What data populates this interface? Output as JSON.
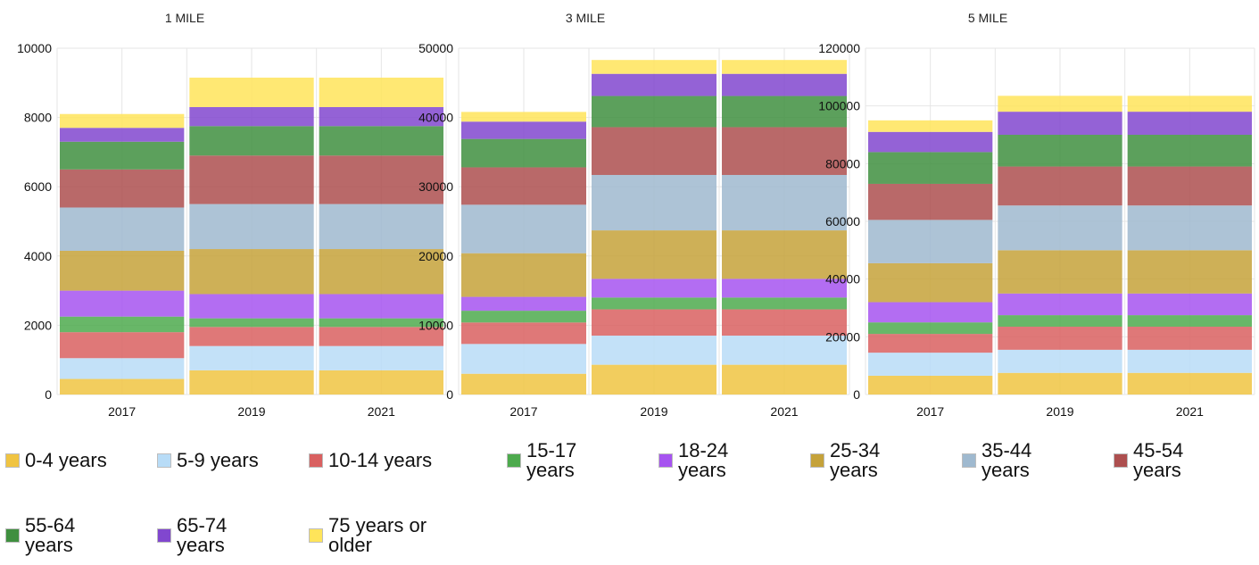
{
  "colors": {
    "0-4 years": "#f0c442",
    "5-9 years": "#b8dcf7",
    "10-14 years": "#d96060",
    "15-17 years": "#4daa4d",
    "18-24 years": "#a653f0",
    "25-34 years": "#c5a23a",
    "35-44 years": "#9fb9cf",
    "45-54 years": "#ad4f4f",
    "55-64 years": "#3f8f3f",
    "65-74 years": "#8147cf",
    "75 years or older": "#ffe45a"
  },
  "legend": [
    {
      "key": "0-4 years",
      "label": "0-4 years"
    },
    {
      "key": "5-9 years",
      "label": "5-9 years"
    },
    {
      "key": "10-14 years",
      "label": "10-14 years"
    },
    {
      "key": "15-17 years",
      "label": "15-17\nyears"
    },
    {
      "key": "18-24 years",
      "label": "18-24\nyears"
    },
    {
      "key": "25-34 years",
      "label": "25-34\nyears"
    },
    {
      "key": "35-44 years",
      "label": "35-44\nyears"
    },
    {
      "key": "45-54 years",
      "label": "45-54\nyears"
    },
    {
      "key": "55-64 years",
      "label": "55-64\nyears"
    },
    {
      "key": "65-74 years",
      "label": "65-74\nyears"
    },
    {
      "key": "75 years or older",
      "label": "75 years or\nolder"
    }
  ],
  "chart_data": [
    {
      "type": "bar",
      "stacked": true,
      "title": "1 MILE",
      "categories": [
        "2017",
        "2019",
        "2021"
      ],
      "ylim": [
        0,
        10000
      ],
      "yticks": [
        "0",
        "2000",
        "4000",
        "6000",
        "8000",
        "10000"
      ],
      "grid": true,
      "series": [
        {
          "name": "0-4 years",
          "values": [
            450,
            700,
            700
          ]
        },
        {
          "name": "5-9 years",
          "values": [
            600,
            700,
            700
          ]
        },
        {
          "name": "10-14 years",
          "values": [
            750,
            550,
            550
          ]
        },
        {
          "name": "15-17 years",
          "values": [
            450,
            250,
            250
          ]
        },
        {
          "name": "18-24 years",
          "values": [
            750,
            700,
            700
          ]
        },
        {
          "name": "25-34 years",
          "values": [
            1150,
            1300,
            1300
          ]
        },
        {
          "name": "35-44 years",
          "values": [
            1250,
            1300,
            1300
          ]
        },
        {
          "name": "45-54 years",
          "values": [
            1100,
            1400,
            1400
          ]
        },
        {
          "name": "55-64 years",
          "values": [
            800,
            850,
            850
          ]
        },
        {
          "name": "65-74 years",
          "values": [
            400,
            550,
            550
          ]
        },
        {
          "name": "75 years or older",
          "values": [
            400,
            850,
            850
          ]
        }
      ]
    },
    {
      "type": "bar",
      "stacked": true,
      "title": "3 MILE",
      "categories": [
        "2017",
        "2019",
        "2021"
      ],
      "ylim": [
        0,
        50000
      ],
      "yticks": [
        "0",
        "10000",
        "20000",
        "30000",
        "40000",
        "50000"
      ],
      "grid": true,
      "series": [
        {
          "name": "0-4 years",
          "values": [
            3000,
            4300,
            4300
          ]
        },
        {
          "name": "5-9 years",
          "values": [
            4300,
            4200,
            4200
          ]
        },
        {
          "name": "10-14 years",
          "values": [
            3100,
            3800,
            3800
          ]
        },
        {
          "name": "15-17 years",
          "values": [
            1700,
            1700,
            1700
          ]
        },
        {
          "name": "18-24 years",
          "values": [
            2000,
            2700,
            2700
          ]
        },
        {
          "name": "25-34 years",
          "values": [
            6300,
            7000,
            7000
          ]
        },
        {
          "name": "35-44 years",
          "values": [
            7000,
            8000,
            8000
          ]
        },
        {
          "name": "45-54 years",
          "values": [
            5400,
            6900,
            6900
          ]
        },
        {
          "name": "55-64 years",
          "values": [
            4100,
            4500,
            4500
          ]
        },
        {
          "name": "65-74 years",
          "values": [
            2500,
            3200,
            3200
          ]
        },
        {
          "name": "75 years or older",
          "values": [
            1400,
            2000,
            2000
          ]
        }
      ]
    },
    {
      "type": "bar",
      "stacked": true,
      "title": "5 MILE",
      "categories": [
        "2017",
        "2019",
        "2021"
      ],
      "ylim": [
        0,
        120000
      ],
      "yticks": [
        "0",
        "20000",
        "40000",
        "60000",
        "80000",
        "100000",
        "120000"
      ],
      "grid": true,
      "series": [
        {
          "name": "0-4 years",
          "values": [
            6500,
            7500,
            7500
          ]
        },
        {
          "name": "5-9 years",
          "values": [
            8000,
            8000,
            8000
          ]
        },
        {
          "name": "10-14 years",
          "values": [
            6500,
            8000,
            8000
          ]
        },
        {
          "name": "15-17 years",
          "values": [
            4000,
            4000,
            4000
          ]
        },
        {
          "name": "18-24 years",
          "values": [
            7000,
            7500,
            7500
          ]
        },
        {
          "name": "25-34 years",
          "values": [
            13500,
            15000,
            15000
          ]
        },
        {
          "name": "35-44 years",
          "values": [
            15000,
            15500,
            15500
          ]
        },
        {
          "name": "45-54 years",
          "values": [
            12500,
            13500,
            13500
          ]
        },
        {
          "name": "55-64 years",
          "values": [
            11000,
            11000,
            11000
          ]
        },
        {
          "name": "65-74 years",
          "values": [
            7000,
            8000,
            8000
          ]
        },
        {
          "name": "75 years or older",
          "values": [
            4000,
            5500,
            5500
          ]
        }
      ]
    }
  ]
}
